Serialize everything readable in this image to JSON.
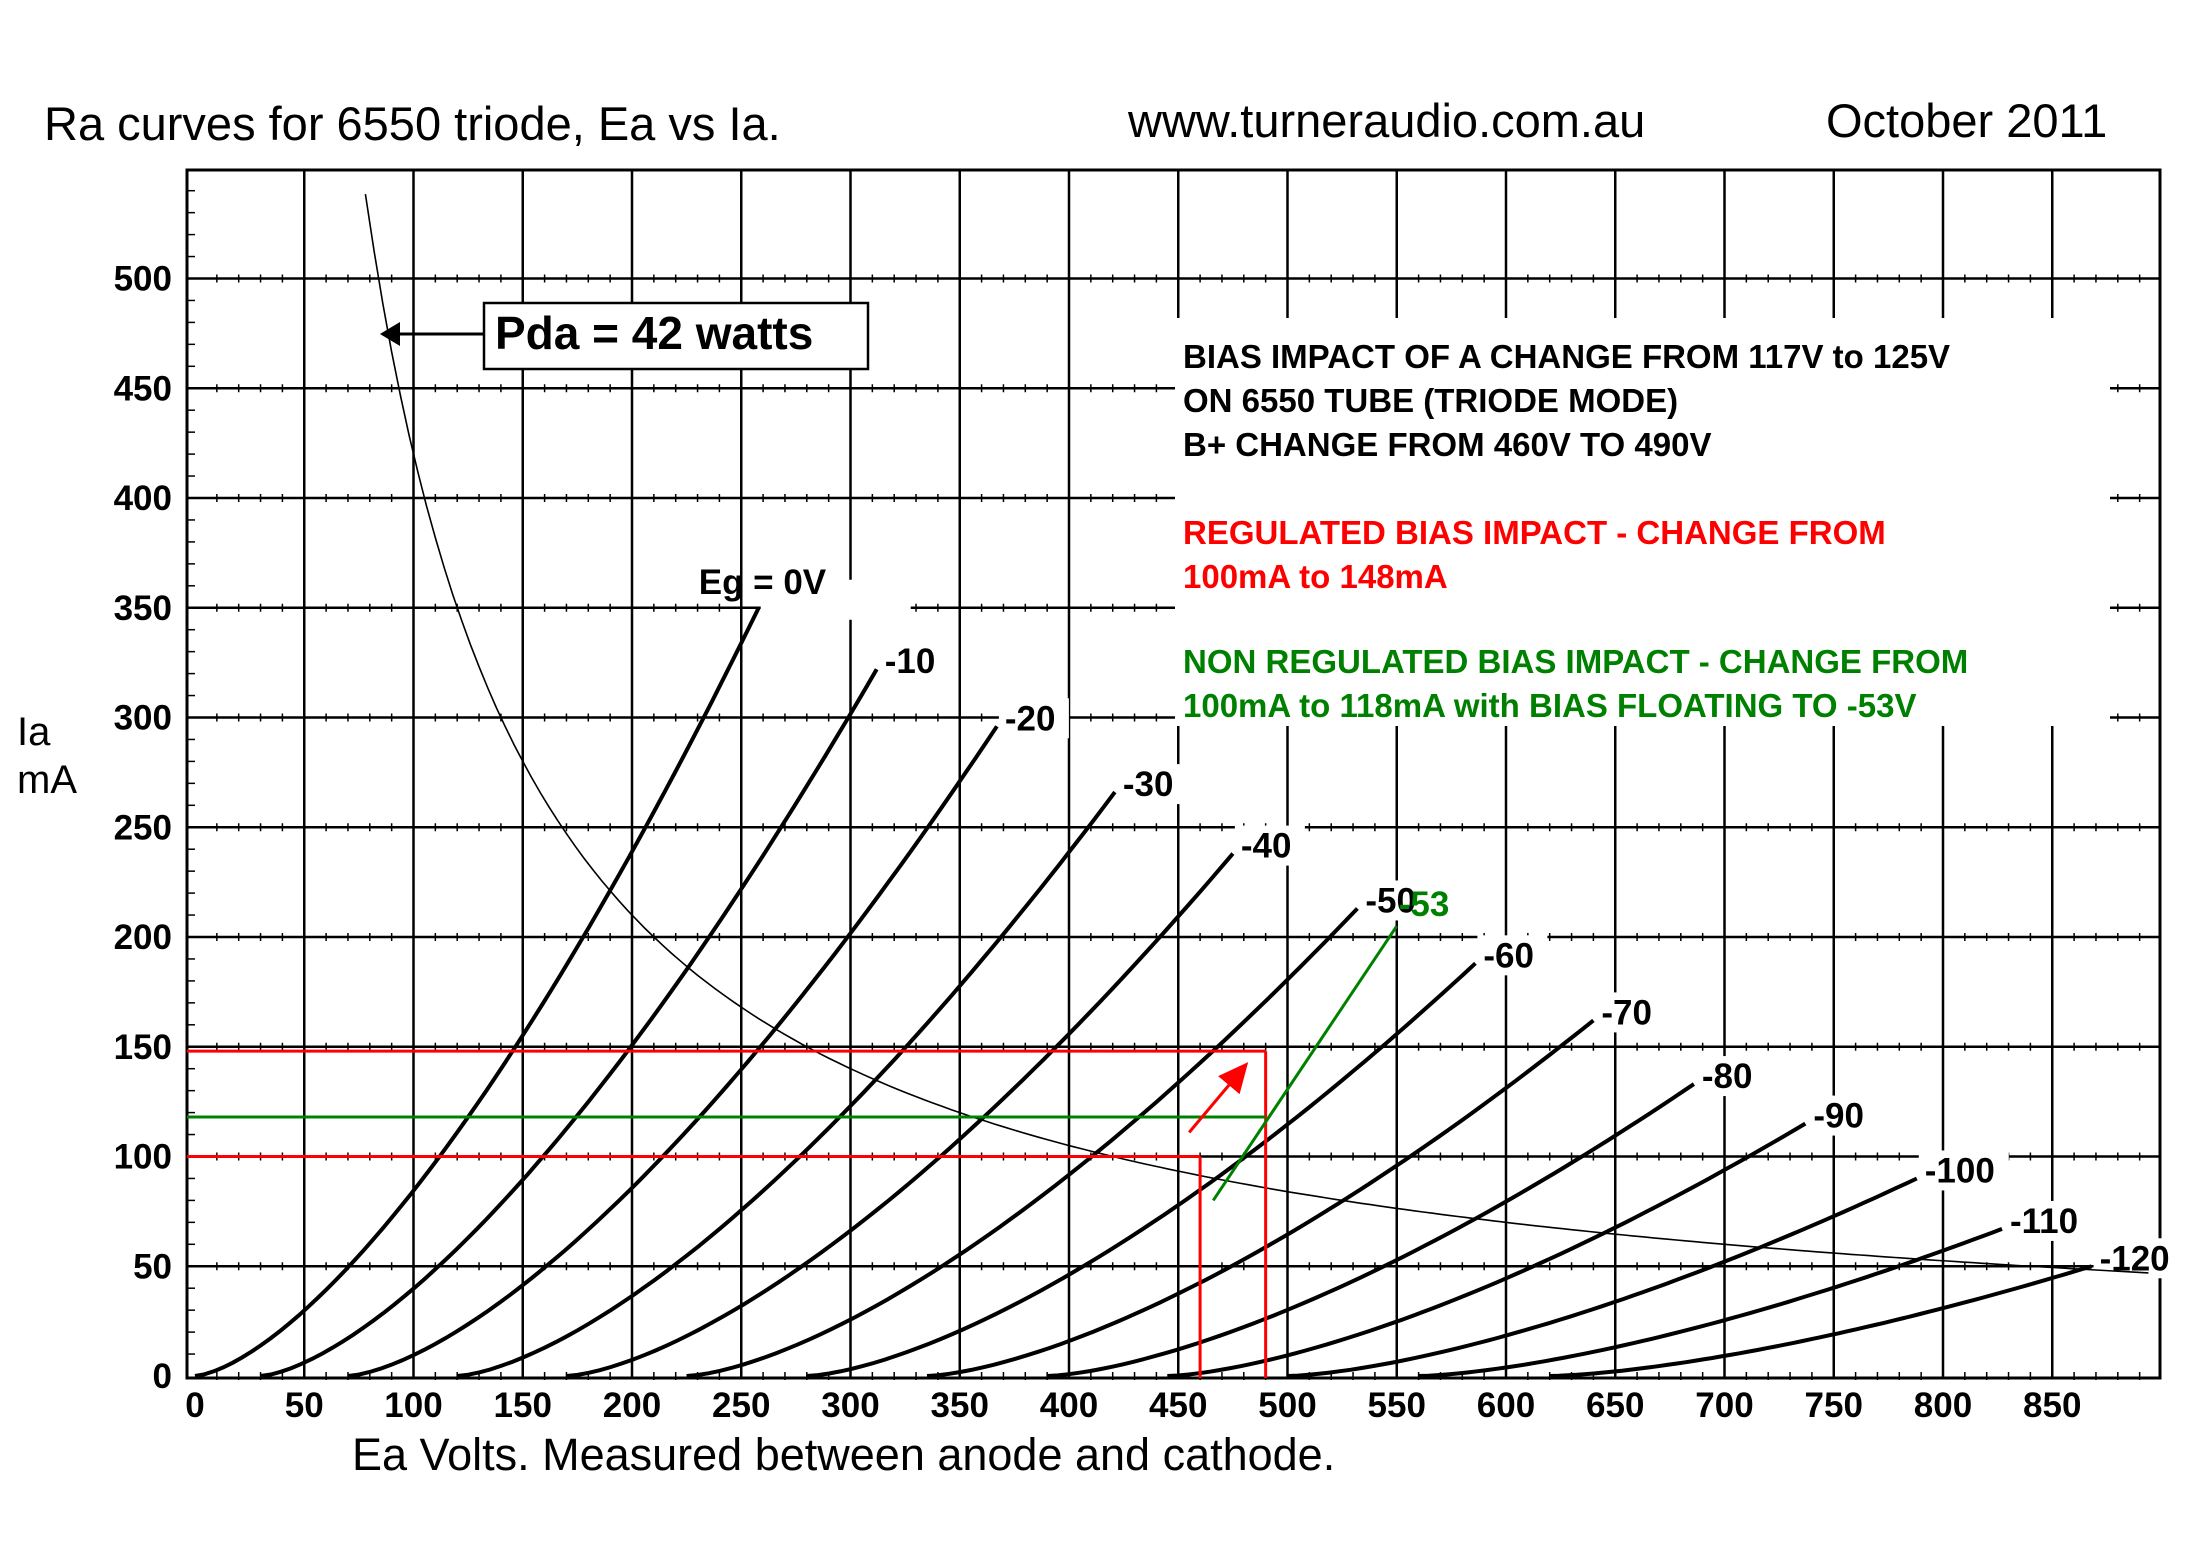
{
  "header": {
    "title": "Ra curves for 6550 triode, Ea vs Ia.",
    "website": "www.turneraudio.com.au",
    "date": "October 2011"
  },
  "chart_data": {
    "type": "line",
    "title": "Ra curves for 6550 triode, Ea vs Ia.",
    "xlabel": "Ea Volts. Measured between anode and cathode.",
    "ylabel": "Ia mA",
    "xlim": [
      0,
      900
    ],
    "ylim": [
      0,
      550
    ],
    "x_ticks": [
      0,
      50,
      100,
      150,
      200,
      250,
      300,
      350,
      400,
      450,
      500,
      550,
      600,
      650,
      700,
      750,
      800,
      850
    ],
    "y_ticks": [
      0,
      50,
      100,
      150,
      200,
      250,
      300,
      350,
      400,
      450,
      500
    ],
    "grid": true,
    "series": [
      {
        "name": "Eg = 0V",
        "label": "Eg = 0V",
        "x0": 0,
        "x_end": 258,
        "y_end": 350
      },
      {
        "name": "-10",
        "label": "-10",
        "x0": 30,
        "x_end": 312,
        "y_end": 322
      },
      {
        "name": "-20",
        "label": "-20",
        "x0": 70,
        "x_end": 367,
        "y_end": 296
      },
      {
        "name": "-30",
        "label": "-30",
        "x0": 120,
        "x_end": 421,
        "y_end": 266
      },
      {
        "name": "-40",
        "label": "-40",
        "x0": 170,
        "x_end": 475,
        "y_end": 238
      },
      {
        "name": "-50",
        "label": "-50",
        "x0": 225,
        "x_end": 532,
        "y_end": 213
      },
      {
        "name": "-60",
        "label": "-60",
        "x0": 280,
        "x_end": 586,
        "y_end": 188
      },
      {
        "name": "-70",
        "label": "-70",
        "x0": 335,
        "x_end": 640,
        "y_end": 162
      },
      {
        "name": "-80",
        "label": "-80",
        "x0": 390,
        "x_end": 686,
        "y_end": 133
      },
      {
        "name": "-90",
        "label": "-90",
        "x0": 445,
        "x_end": 737,
        "y_end": 115
      },
      {
        "name": "-100",
        "label": "-100",
        "x0": 500,
        "x_end": 788,
        "y_end": 90
      },
      {
        "name": "-110",
        "label": "-110",
        "x0": 560,
        "x_end": 827,
        "y_end": 67
      },
      {
        "name": "-120",
        "label": "-120",
        "x0": 620,
        "x_end": 868,
        "y_end": 50
      }
    ],
    "dissipation_curve": {
      "label": "Pda = 42 watts",
      "watts": 42
    },
    "annotations": {
      "green_load_line": {
        "label": "-53",
        "x": [
          466,
          550
        ],
        "y": [
          80,
          205
        ]
      },
      "red_reference_lines": [
        {
          "y": 100,
          "x_drop": 460
        },
        {
          "y": 148,
          "x_drop": 490
        }
      ],
      "green_reference_line": {
        "y": 118,
        "x_end": 490
      },
      "red_arrow": {
        "from": [
          455,
          111
        ],
        "to": [
          482,
          143
        ]
      }
    },
    "notes": {
      "black": [
        "BIAS IMPACT OF A CHANGE FROM 117V to 125V",
        "ON 6550 TUBE (TRIODE MODE)",
        "B+ CHANGE FROM 460V TO 490V"
      ],
      "red": [
        "REGULATED BIAS IMPACT - CHANGE FROM",
        "100mA to 148mA"
      ],
      "green": [
        "NON REGULATED BIAS IMPACT - CHANGE FROM",
        "100mA to 118mA with BIAS FLOATING TO -53V"
      ]
    },
    "colors": {
      "curves": "#000000",
      "red": "#ff0000",
      "green": "#008000"
    }
  }
}
